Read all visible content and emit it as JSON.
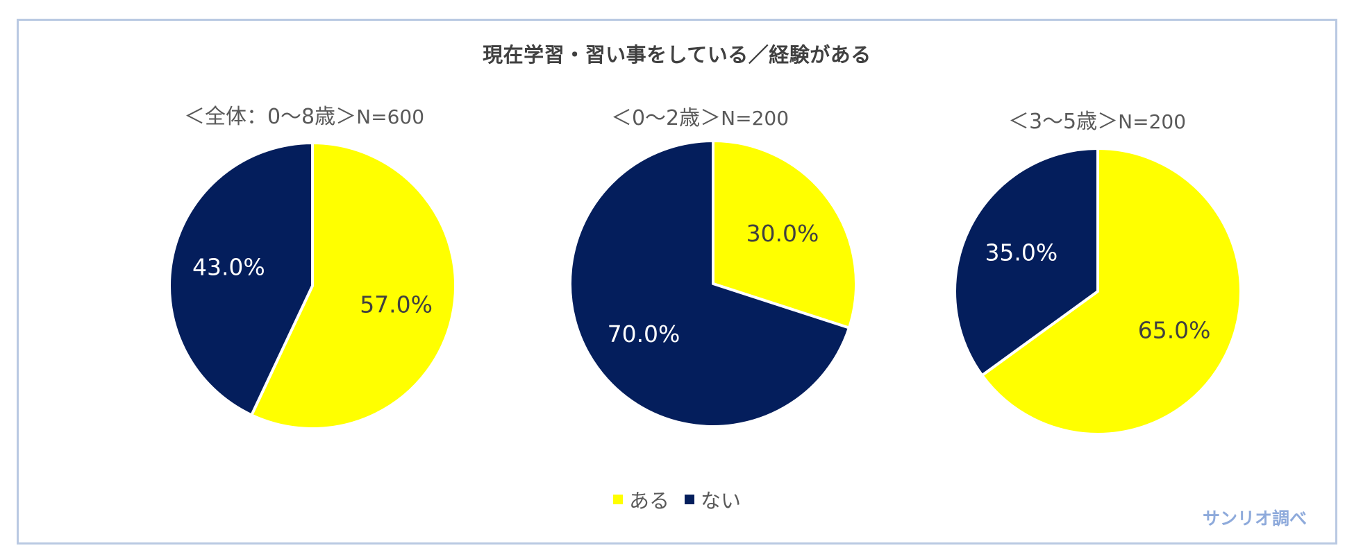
{
  "title": "現在学習・習い事をしている／経験がある",
  "credit": "サンリオ調べ",
  "colors": {
    "aru": "#ffff00",
    "nai": "#041e5c",
    "label_on_yellow": "#404040",
    "label_on_navy": "#ffffff",
    "frame": "#b9c9e2",
    "credit": "#8eaadb"
  },
  "legend": [
    {
      "label": "ある",
      "color": "#ffff00"
    },
    {
      "label": "ない",
      "color": "#041e5c"
    }
  ],
  "chart_data": [
    {
      "type": "pie",
      "title": "＜全体：0～8歳＞",
      "n_label": "N=600",
      "slices": [
        {
          "name": "ある",
          "value": 57.0,
          "label": "57.0%"
        },
        {
          "name": "ない",
          "value": 43.0,
          "label": "43.0%"
        }
      ]
    },
    {
      "type": "pie",
      "title": "＜0～2歳＞",
      "n_label": "N=200",
      "slices": [
        {
          "name": "ある",
          "value": 30.0,
          "label": "30.0%"
        },
        {
          "name": "ない",
          "value": 70.0,
          "label": "70.0%"
        }
      ]
    },
    {
      "type": "pie",
      "title": "＜3～5歳＞",
      "n_label": "N=200",
      "slices": [
        {
          "name": "ある",
          "value": 65.0,
          "label": "65.0%"
        },
        {
          "name": "ない",
          "value": 35.0,
          "label": "35.0%"
        }
      ]
    }
  ]
}
